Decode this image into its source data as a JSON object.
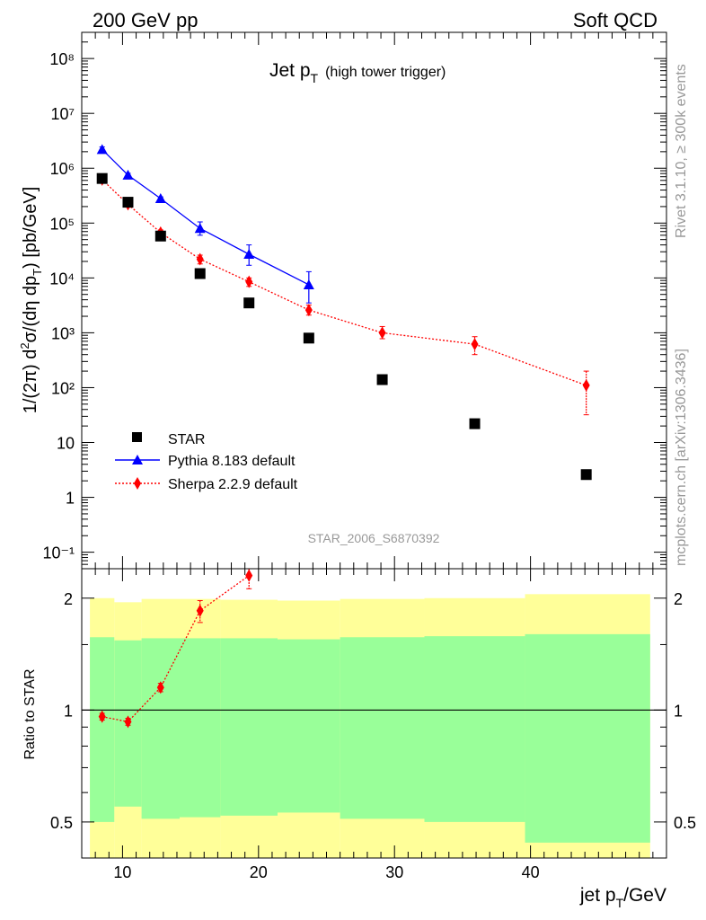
{
  "header": {
    "left": "200 GeV pp",
    "right": "Soft QCD"
  },
  "side_labels": {
    "rivet": "Rivet 3.1.10, ≥ 300k events",
    "mcplots": "mcplots.cern.ch [arXiv:1306.3436]"
  },
  "colors": {
    "star": "#000000",
    "pythia": "#0000ff",
    "sherpa": "#ff0000",
    "band_outer": "#ffff99",
    "band_inner": "#99ff99",
    "watermark": "#999999"
  },
  "chart_data": [
    {
      "type": "scatter",
      "id": "main",
      "title": "Jet p_T (high tower trigger)",
      "title_main": "Jet p",
      "title_sub": "T",
      "title_extra": "(high tower trigger)",
      "ylabel": "1/(2π) d²σ/(dη dp_T) [pb/GeV]",
      "yscale": "log",
      "ylim": [
        0.05,
        300000000
      ],
      "xlim": [
        7.0,
        50.0
      ],
      "ytick_labels": [
        "10⁸",
        "10⁷",
        "10⁶",
        "10⁵",
        "10⁴",
        "10³",
        "10²",
        "10",
        "1",
        "10⁻¹"
      ],
      "watermark": "STAR_2006_S6870392",
      "legend": [
        "STAR",
        "Pythia 8.183 default",
        "Sherpa 2.2.9 default"
      ],
      "series": [
        {
          "name": "STAR",
          "marker": "square",
          "x": [
            8.5,
            10.4,
            12.8,
            15.7,
            19.3,
            23.7,
            29.1,
            35.9,
            44.1
          ],
          "y": [
            650000,
            240000,
            58000,
            12000,
            3500,
            800,
            140,
            22,
            2.6
          ]
        },
        {
          "name": "Pythia 8.183 default",
          "marker": "triangle",
          "x": [
            8.5,
            10.4,
            12.8,
            15.7,
            19.3,
            23.7
          ],
          "y": [
            2200000,
            750000,
            280000,
            80000,
            27000,
            7500
          ],
          "err_low": [
            2000000,
            700000,
            260000,
            60000,
            17000,
            3500
          ],
          "err_high": [
            2450000,
            810000,
            300000,
            105000,
            40000,
            13000
          ]
        },
        {
          "name": "Sherpa 2.2.9 default",
          "marker": "diamond",
          "x": [
            8.5,
            10.4,
            12.8,
            15.7,
            19.3,
            23.7,
            29.1,
            35.9,
            44.1
          ],
          "y": [
            620000,
            220000,
            67000,
            22000,
            8500,
            2600,
            1000,
            620,
            110
          ],
          "err_low": [
            560000,
            195000,
            60000,
            18000,
            7000,
            2100,
            780,
            400,
            32
          ],
          "err_high": [
            680000,
            245000,
            75000,
            26000,
            10000,
            3200,
            1300,
            850,
            200
          ]
        }
      ]
    },
    {
      "type": "scatter",
      "id": "ratio",
      "ylabel": "Ratio to STAR",
      "yscale": "log",
      "ylim": [
        0.4,
        2.4
      ],
      "xlim": [
        7.0,
        50.0
      ],
      "xlabel": "jet p_T/GeV",
      "xlabel_main": "jet p",
      "xlabel_sub": "T",
      "xlabel_unit": "/GeV",
      "xticks": [
        10,
        20,
        30,
        40
      ],
      "xtick_labels": [
        "10",
        "20",
        "30",
        "40"
      ],
      "yticks": [
        0.5,
        1,
        2
      ],
      "ytick_labels": [
        "0.5",
        "1",
        "2"
      ],
      "bands": {
        "edges": [
          7.6,
          9.4,
          11.4,
          14.2,
          17.2,
          21.4,
          26.0,
          32.2,
          39.6,
          48.8
        ],
        "inner_low": [
          0.5,
          0.55,
          0.51,
          0.515,
          0.52,
          0.53,
          0.51,
          0.5,
          0.44
        ],
        "inner_high": [
          1.57,
          1.54,
          1.56,
          1.56,
          1.56,
          1.55,
          1.57,
          1.58,
          1.6
        ],
        "outer_low": [
          0.38,
          0.38,
          0.38,
          0.38,
          0.38,
          0.38,
          0.38,
          0.38,
          0.38
        ],
        "outer_high": [
          2.0,
          1.95,
          1.99,
          1.99,
          1.98,
          1.97,
          1.99,
          2.0,
          2.05
        ]
      },
      "series": [
        {
          "name": "Sherpa 2.2.9 default",
          "marker": "diamond",
          "x": [
            8.5,
            10.4,
            12.8,
            15.7,
            19.3
          ],
          "y": [
            0.96,
            0.93,
            1.15,
            1.85,
            2.3
          ],
          "err_low": [
            0.94,
            0.91,
            1.12,
            1.72,
            2.12
          ],
          "err_high": [
            0.98,
            0.95,
            1.18,
            1.97,
            2.4
          ]
        }
      ]
    }
  ]
}
